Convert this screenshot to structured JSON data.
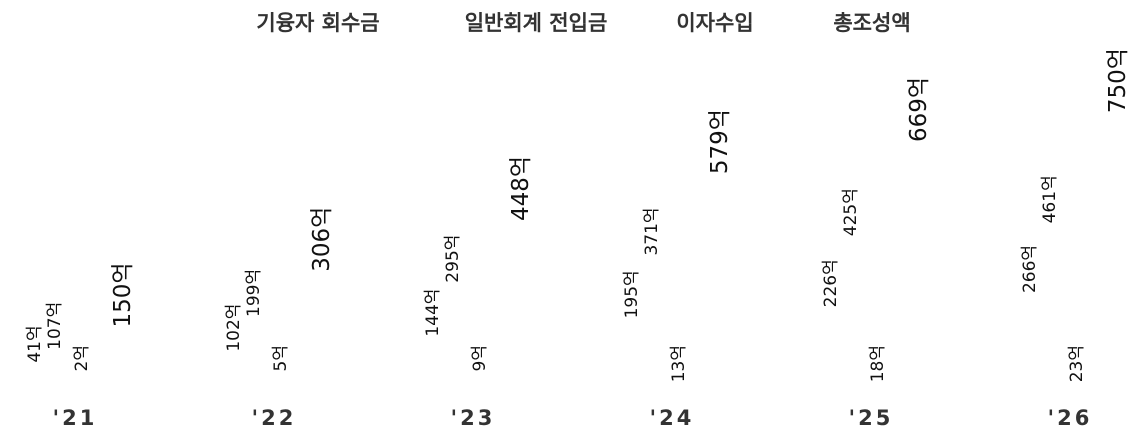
{
  "chart_data": {
    "type": "bar",
    "title": "",
    "xlabel": "",
    "ylabel": "",
    "categories": [
      "'21",
      "'22",
      "'23",
      "'24",
      "'25",
      "'26"
    ],
    "series": [
      {
        "name": "기융자 회수금",
        "values": [
          41,
          102,
          144,
          195,
          226,
          266
        ],
        "labels": [
          "41억",
          "102억",
          "144억",
          "195억",
          "226억",
          "266억"
        ]
      },
      {
        "name": "일반회계 전입금",
        "values": [
          107,
          199,
          295,
          371,
          425,
          461
        ],
        "labels": [
          "107억",
          "199억",
          "295억",
          "371억",
          "425억",
          "461억"
        ]
      },
      {
        "name": "이자수입",
        "values": [
          2,
          5,
          9,
          13,
          18,
          23
        ],
        "labels": [
          "2억",
          "5억",
          "9억",
          "13억",
          "18억",
          "23억"
        ]
      },
      {
        "name": "총조성액",
        "values": [
          150,
          306,
          448,
          579,
          669,
          750
        ],
        "labels": [
          "150억",
          "306억",
          "448억",
          "579억",
          "669억",
          "750억"
        ]
      }
    ],
    "ylim": [
      0,
      750
    ],
    "grid": false,
    "legend": "top"
  }
}
